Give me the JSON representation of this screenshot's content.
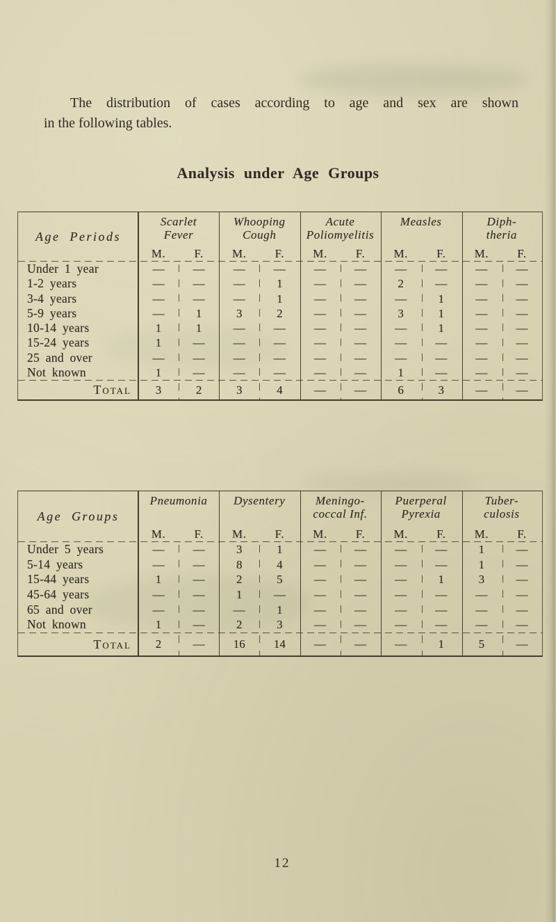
{
  "page": {
    "intro_line1": "The distribution of cases according to age and sex are shown",
    "intro_line2": "in the following tables.",
    "heading": "Analysis under Age Groups",
    "page_number": "12",
    "paper_color": "#d8d2b1",
    "ink_color": "#2e2a21"
  },
  "tables": [
    {
      "row_header": "Age Periods",
      "sub_headers": [
        "M.",
        "F."
      ],
      "column_groups": [
        {
          "line1": "Scarlet",
          "line2": "Fever"
        },
        {
          "line1": "Whooping",
          "line2": "Cough"
        },
        {
          "line1": "Acute",
          "line2": "Poliomyelitis"
        },
        {
          "line1": "Measles",
          "line2": ""
        },
        {
          "line1": "Diph-",
          "line2": "theria"
        }
      ],
      "rows": [
        {
          "label": "Under 1 year",
          "values": [
            "—",
            "—",
            "—",
            "—",
            "—",
            "—",
            "—",
            "—",
            "—",
            "—"
          ]
        },
        {
          "label": "1-2 years",
          "values": [
            "—",
            "—",
            "—",
            "1",
            "—",
            "—",
            "2",
            "—",
            "—",
            "—"
          ]
        },
        {
          "label": "3-4 years",
          "values": [
            "—",
            "—",
            "—",
            "1",
            "—",
            "—",
            "—",
            "1",
            "—",
            "—"
          ]
        },
        {
          "label": "5-9 years",
          "values": [
            "—",
            "1",
            "3",
            "2",
            "—",
            "—",
            "3",
            "1",
            "—",
            "—"
          ]
        },
        {
          "label": "10-14 years",
          "values": [
            "1",
            "1",
            "—",
            "—",
            "—",
            "—",
            "—",
            "1",
            "—",
            "—"
          ]
        },
        {
          "label": "15-24 years",
          "values": [
            "1",
            "—",
            "—",
            "—",
            "—",
            "—",
            "—",
            "—",
            "—",
            "—"
          ]
        },
        {
          "label": "25 and over",
          "values": [
            "—",
            "—",
            "—",
            "—",
            "—",
            "—",
            "—",
            "—",
            "—",
            "—"
          ]
        },
        {
          "label": "Not known",
          "values": [
            "1",
            "—",
            "—",
            "—",
            "—",
            "—",
            "1",
            "—",
            "—",
            "—"
          ]
        }
      ],
      "total_label": "Total",
      "totals": [
        "3",
        "2",
        "3",
        "4",
        "—",
        "—",
        "6",
        "3",
        "—",
        "—"
      ]
    },
    {
      "row_header": "Age Groups",
      "sub_headers": [
        "M.",
        "F."
      ],
      "column_groups": [
        {
          "line1": "Pneumonia",
          "line2": ""
        },
        {
          "line1": "Dysentery",
          "line2": ""
        },
        {
          "line1": "Meningo-",
          "line2": "coccal Inf."
        },
        {
          "line1": "Puerperal",
          "line2": "Pyrexia"
        },
        {
          "line1": "Tuber-",
          "line2": "culosis"
        }
      ],
      "rows": [
        {
          "label": "Under 5 years",
          "values": [
            "—",
            "—",
            "3",
            "1",
            "—",
            "—",
            "—",
            "—",
            "1",
            "—"
          ]
        },
        {
          "label": "5-14 years",
          "values": [
            "—",
            "—",
            "8",
            "4",
            "—",
            "—",
            "—",
            "—",
            "1",
            "—"
          ]
        },
        {
          "label": "15-44 years",
          "values": [
            "1",
            "—",
            "2",
            "5",
            "—",
            "—",
            "—",
            "1",
            "3",
            "—"
          ]
        },
        {
          "label": "45-64 years",
          "values": [
            "—",
            "—",
            "1",
            "—",
            "—",
            "—",
            "—",
            "—",
            "—",
            "—"
          ]
        },
        {
          "label": "65 and over",
          "values": [
            "—",
            "—",
            "—",
            "1",
            "—",
            "—",
            "—",
            "—",
            "—",
            "—"
          ]
        },
        {
          "label": "Not known",
          "values": [
            "1",
            "—",
            "2",
            "3",
            "—",
            "—",
            "—",
            "—",
            "—",
            "—"
          ]
        }
      ],
      "total_label": "Total",
      "totals": [
        "2",
        "—",
        "16",
        "14",
        "—",
        "—",
        "—",
        "1",
        "5",
        "—"
      ]
    }
  ]
}
